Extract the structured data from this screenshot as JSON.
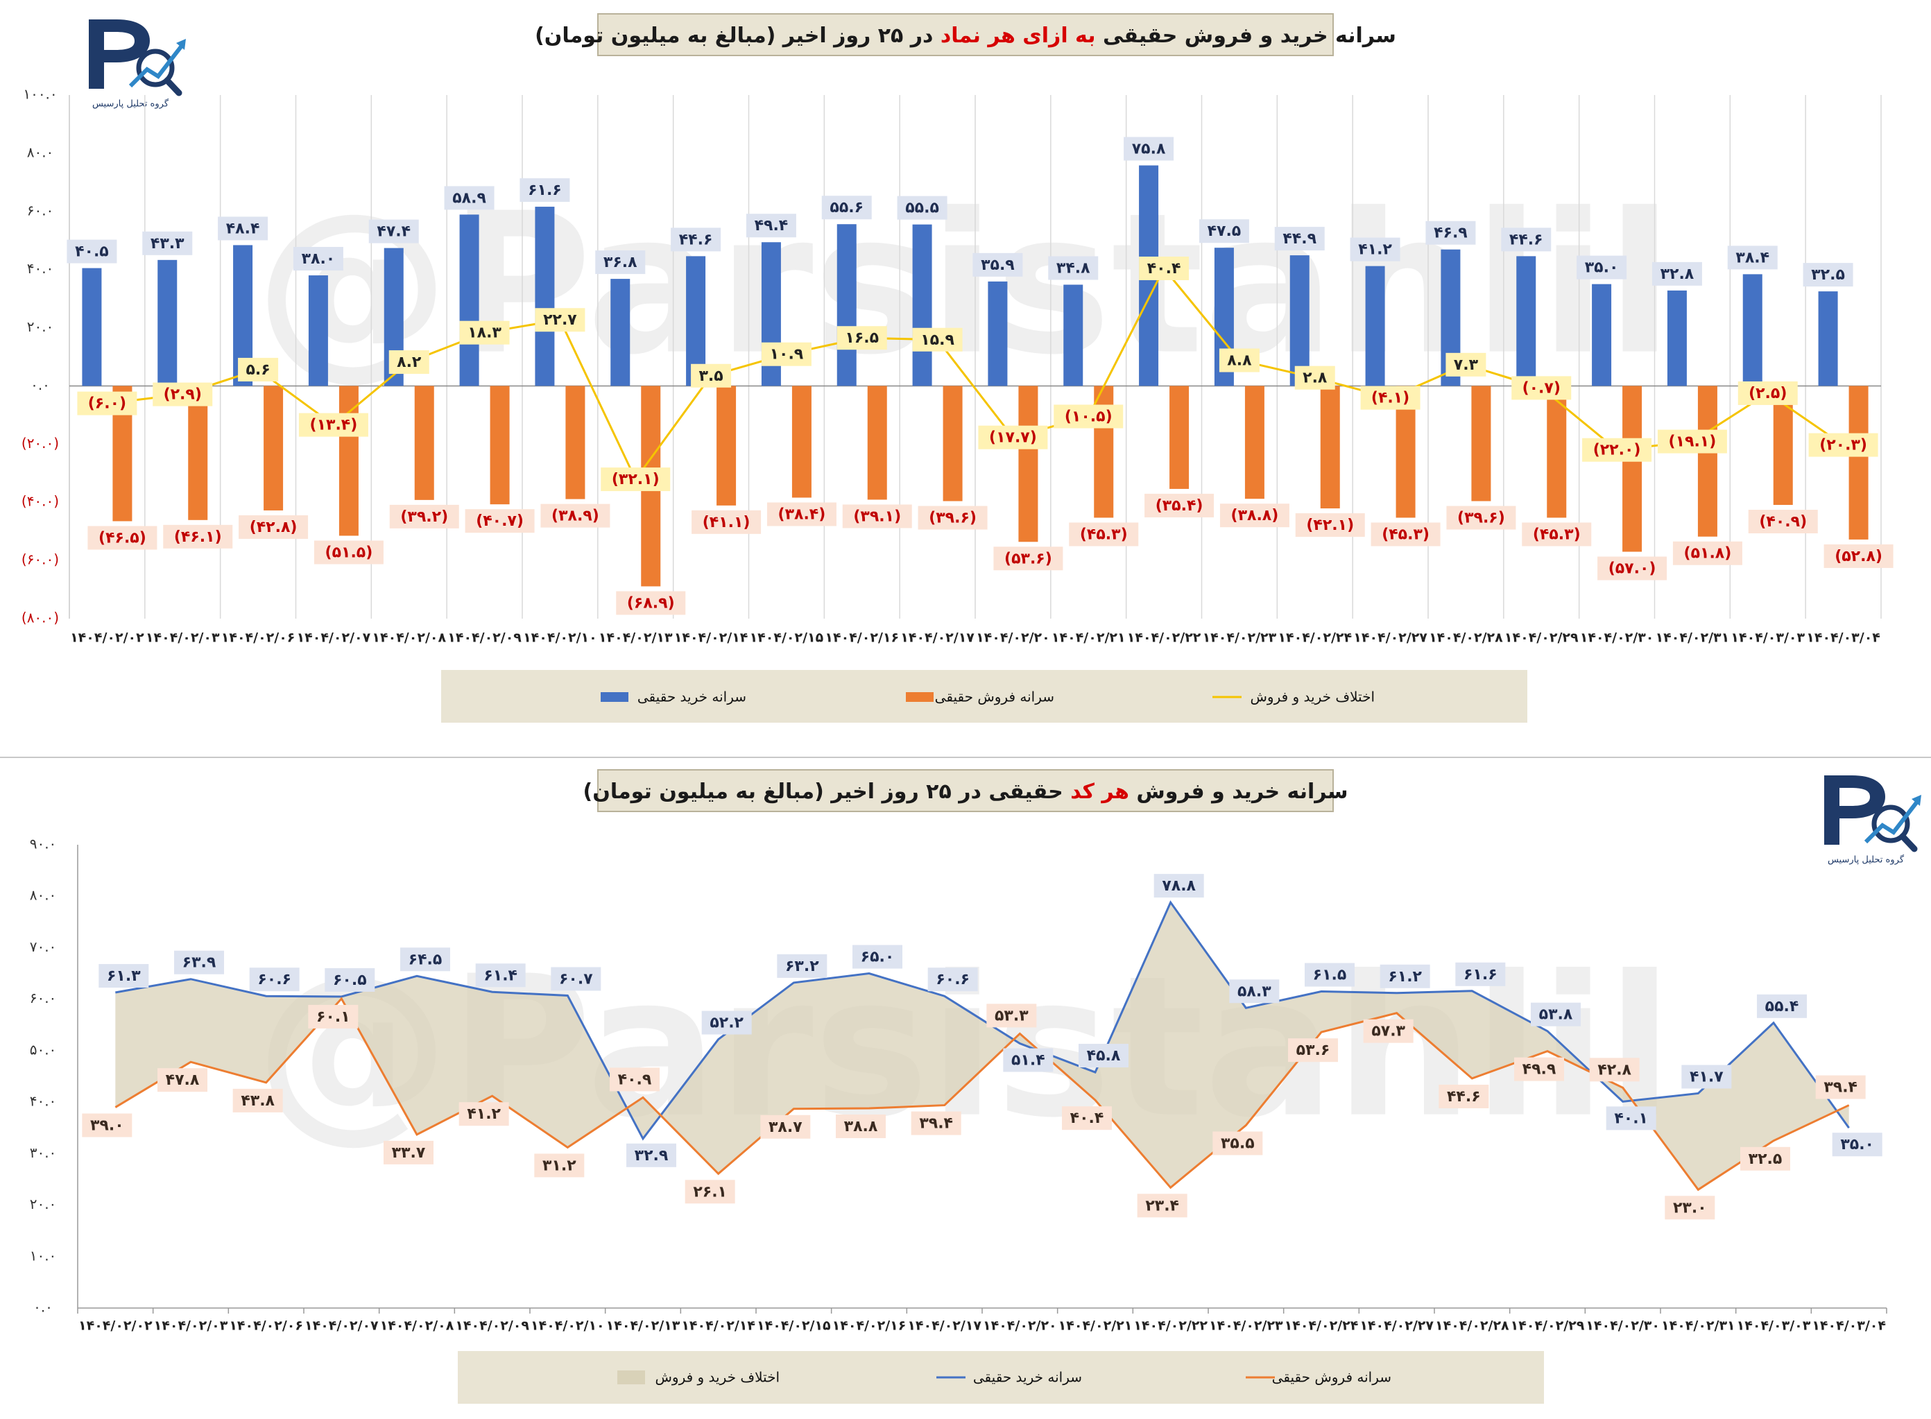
{
  "watermark": "@Parsistahlil",
  "logo": {
    "mark": "P",
    "subtitle": "گروه تحلیل پارسیس",
    "primary_color": "#1f3a68",
    "accent_color": "#2f87c8"
  },
  "colors": {
    "buy": "#4472c4",
    "sell": "#ed7d31",
    "diff": "#f5c400",
    "area": "#d9d2b8",
    "pos_label_bg": "#dde3f0",
    "diff_label_bg": "#fff2b3",
    "neg_label_bg": "#fbe3d6",
    "neg_text": "#c00000"
  },
  "dates": [
    "۱۴۰۴/۰۲/۰۲",
    "۱۴۰۴/۰۲/۰۳",
    "۱۴۰۴/۰۲/۰۶",
    "۱۴۰۴/۰۲/۰۷",
    "۱۴۰۴/۰۲/۰۸",
    "۱۴۰۴/۰۲/۰۹",
    "۱۴۰۴/۰۲/۱۰",
    "۱۴۰۴/۰۲/۱۳",
    "۱۴۰۴/۰۲/۱۴",
    "۱۴۰۴/۰۲/۱۵",
    "۱۴۰۴/۰۲/۱۶",
    "۱۴۰۴/۰۲/۱۷",
    "۱۴۰۴/۰۲/۲۰",
    "۱۴۰۴/۰۲/۲۱",
    "۱۴۰۴/۰۲/۲۲",
    "۱۴۰۴/۰۲/۲۳",
    "۱۴۰۴/۰۲/۲۴",
    "۱۴۰۴/۰۲/۲۷",
    "۱۴۰۴/۰۲/۲۸",
    "۱۴۰۴/۰۲/۲۹",
    "۱۴۰۴/۰۲/۳۰",
    "۱۴۰۴/۰۲/۳۱",
    "۱۴۰۴/۰۳/۰۳",
    "۱۴۰۴/۰۳/۰۴"
  ],
  "chart_data": [
    {
      "type": "bar",
      "title_parts": [
        "سرانه خرید و فروش حقیقی ",
        "به ازای هر نماد",
        " در ۲۵ روز اخیر (مبالغ به میلیون تومان)"
      ],
      "ylim": [
        -80,
        100
      ],
      "yticks": [
        -80,
        -60,
        -40,
        -20,
        0,
        20,
        40,
        60,
        80,
        100
      ],
      "ytick_labels": [
        "(۸۰.۰)",
        "(۶۰.۰)",
        "(۴۰.۰)",
        "(۲۰.۰)",
        "۰.۰",
        "۲۰.۰",
        "۴۰.۰",
        "۶۰.۰",
        "۸۰.۰",
        "۱۰۰.۰"
      ],
      "series": [
        {
          "name": "سرانه خرید حقیقی",
          "kind": "bar",
          "values": [
            40.5,
            43.3,
            48.4,
            38.0,
            47.4,
            58.9,
            61.6,
            36.8,
            44.6,
            49.4,
            55.6,
            55.5,
            35.9,
            34.8,
            75.8,
            47.5,
            44.9,
            41.2,
            46.9,
            44.6,
            35.0,
            32.8,
            38.4,
            32.5
          ],
          "labels": [
            "۴۰.۵",
            "۴۳.۳",
            "۴۸.۴",
            "۳۸.۰",
            "۴۷.۴",
            "۵۸.۹",
            "۶۱.۶",
            "۳۶.۸",
            "۴۴.۶",
            "۴۹.۴",
            "۵۵.۶",
            "۵۵.۵",
            "۳۵.۹",
            "۳۴.۸",
            "۷۵.۸",
            "۴۷.۵",
            "۴۴.۹",
            "۴۱.۲",
            "۴۶.۹",
            "۴۴.۶",
            "۳۵.۰",
            "۳۲.۸",
            "۳۸.۴",
            "۳۲.۵"
          ]
        },
        {
          "name": "سرانه فروش حقیقی",
          "kind": "bar",
          "values": [
            -46.5,
            -46.1,
            -42.8,
            -51.5,
            -39.2,
            -40.7,
            -38.9,
            -68.9,
            -41.1,
            -38.4,
            -39.1,
            -39.6,
            -53.6,
            -45.3,
            -35.4,
            -38.8,
            -42.1,
            -45.3,
            -39.6,
            -45.3,
            -57.0,
            -51.8,
            -40.9,
            -52.8
          ],
          "labels": [
            "(۴۶.۵)",
            "(۴۶.۱)",
            "(۴۲.۸)",
            "(۵۱.۵)",
            "(۳۹.۲)",
            "(۴۰.۷)",
            "(۳۸.۹)",
            "(۶۸.۹)",
            "(۴۱.۱)",
            "(۳۸.۴)",
            "(۳۹.۱)",
            "(۳۹.۶)",
            "(۵۳.۶)",
            "(۴۵.۳)",
            "(۳۵.۴)",
            "(۳۸.۸)",
            "(۴۲.۱)",
            "(۴۵.۳)",
            "(۳۹.۶)",
            "(۴۵.۳)",
            "(۵۷.۰)",
            "(۵۱.۸)",
            "(۴۰.۹)",
            "(۵۲.۸)"
          ]
        },
        {
          "name": "اختلاف خرید و فروش",
          "kind": "line",
          "values": [
            -6.0,
            -2.9,
            5.6,
            -13.4,
            8.2,
            18.3,
            22.7,
            -32.1,
            3.5,
            10.9,
            16.5,
            15.9,
            -17.7,
            -10.5,
            40.4,
            8.8,
            2.8,
            -4.1,
            7.3,
            -0.7,
            -22.0,
            -19.1,
            -2.5,
            -20.3
          ],
          "labels": [
            "(۶.۰)",
            "(۲.۹)",
            "۵.۶",
            "(۱۳.۴)",
            "۸.۲",
            "۱۸.۳",
            "۲۲.۷",
            "(۳۲.۱)",
            "۳.۵",
            "۱۰.۹",
            "۱۶.۵",
            "۱۵.۹",
            "(۱۷.۷)",
            "(۱۰.۵)",
            "۴۰.۴",
            "۸.۸",
            "۲.۸",
            "(۴.۱)",
            "۷.۳",
            "(۰.۷)",
            "(۲۲.۰)",
            "(۱۹.۱)",
            "(۲.۵)",
            "(۲۰.۳)"
          ]
        }
      ],
      "legend": [
        "سرانه خرید حقیقی",
        "سرانه فروش حقیقی",
        "اختلاف خرید و فروش"
      ],
      "legend_position": "bottom",
      "grid": "vertical"
    },
    {
      "type": "area",
      "title_parts": [
        "سرانه خرید و فروش ",
        "هر کد",
        " حقیقی در ۲۵ روز اخیر (مبالغ به میلیون تومان)"
      ],
      "ylim": [
        0,
        90
      ],
      "yticks": [
        0,
        10,
        20,
        30,
        40,
        50,
        60,
        70,
        80,
        90
      ],
      "ytick_labels": [
        "۰.۰",
        "۱۰.۰",
        "۲۰.۰",
        "۳۰.۰",
        "۴۰.۰",
        "۵۰.۰",
        "۶۰.۰",
        "۷۰.۰",
        "۸۰.۰",
        "۹۰.۰"
      ],
      "series": [
        {
          "name": "سرانه خرید حقیقی",
          "kind": "line",
          "values": [
            61.3,
            63.9,
            60.6,
            60.5,
            64.5,
            61.4,
            60.7,
            32.9,
            52.2,
            63.2,
            65.0,
            60.6,
            51.4,
            45.8,
            78.8,
            58.3,
            61.5,
            61.2,
            61.6,
            53.8,
            40.1,
            41.7,
            55.4,
            35.0
          ],
          "labels": [
            "۶۱.۳",
            "۶۳.۹",
            "۶۰.۶",
            "۶۰.۵",
            "۶۴.۵",
            "۶۱.۴",
            "۶۰.۷",
            "۳۲.۹",
            "۵۲.۲",
            "۶۳.۲",
            "۶۵.۰",
            "۶۰.۶",
            "۵۱.۴",
            "۴۵.۸",
            "۷۸.۸",
            "۵۸.۳",
            "۶۱.۵",
            "۶۱.۲",
            "۶۱.۶",
            "۵۳.۸",
            "۴۰.۱",
            "۴۱.۷",
            "۵۵.۴",
            "۳۵.۰"
          ]
        },
        {
          "name": "سرانه فروش حقیقی",
          "kind": "line",
          "values": [
            39.0,
            47.8,
            43.8,
            60.1,
            33.7,
            41.2,
            31.2,
            40.9,
            26.1,
            38.7,
            38.8,
            39.4,
            53.3,
            40.4,
            23.4,
            35.5,
            53.6,
            57.3,
            44.6,
            49.9,
            42.8,
            23.0,
            32.5,
            39.4
          ],
          "labels": [
            "۳۹.۰",
            "۴۷.۸",
            "۴۳.۸",
            "۶۰.۱",
            "۳۳.۷",
            "۴۱.۲",
            "۳۱.۲",
            "۴۰.۹",
            "۲۶.۱",
            "۳۸.۷",
            "۳۸.۸",
            "۳۹.۴",
            "۵۳.۳",
            "۴۰.۴",
            "۲۳.۴",
            "۳۵.۵",
            "۵۳.۶",
            "۵۷.۳",
            "۴۴.۶",
            "۴۹.۹",
            "۴۲.۸",
            "۲۳.۰",
            "۳۲.۵",
            "۳۹.۴"
          ]
        }
      ],
      "area_name": "اختلاف خرید و فروش",
      "legend": [
        "اختلاف خرید و فروش",
        "سرانه خرید حقیقی",
        "سرانه فروش حقیقی"
      ],
      "legend_position": "bottom",
      "grid": "none"
    }
  ]
}
